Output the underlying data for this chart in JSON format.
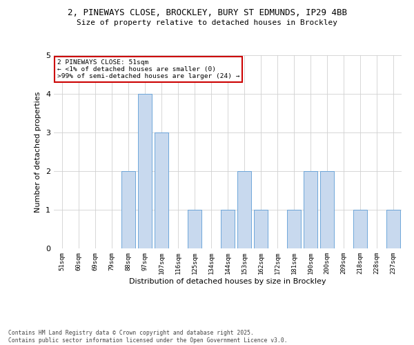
{
  "title1": "2, PINEWAYS CLOSE, BROCKLEY, BURY ST EDMUNDS, IP29 4BB",
  "title2": "Size of property relative to detached houses in Brockley",
  "xlabel": "Distribution of detached houses by size in Brockley",
  "ylabel": "Number of detached properties",
  "categories": [
    "51sqm",
    "60sqm",
    "69sqm",
    "79sqm",
    "88sqm",
    "97sqm",
    "107sqm",
    "116sqm",
    "125sqm",
    "134sqm",
    "144sqm",
    "153sqm",
    "162sqm",
    "172sqm",
    "181sqm",
    "190sqm",
    "200sqm",
    "209sqm",
    "218sqm",
    "228sqm",
    "237sqm"
  ],
  "values": [
    0,
    0,
    0,
    0,
    2,
    4,
    3,
    0,
    1,
    0,
    1,
    2,
    1,
    0,
    1,
    2,
    2,
    0,
    1,
    0,
    1
  ],
  "bar_color": "#c8d9ee",
  "bar_edge_color": "#5b9bd5",
  "annotation_text": "2 PINEWAYS CLOSE: 51sqm\n← <1% of detached houses are smaller (0)\n>99% of semi-detached houses are larger (24) →",
  "annotation_box_color": "#ffffff",
  "annotation_box_edge_color": "#cc0000",
  "ylim": [
    0,
    5
  ],
  "yticks": [
    0,
    1,
    2,
    3,
    4,
    5
  ],
  "footer_text": "Contains HM Land Registry data © Crown copyright and database right 2025.\nContains public sector information licensed under the Open Government Licence v3.0.",
  "background_color": "#ffffff",
  "grid_color": "#d0d0d0"
}
